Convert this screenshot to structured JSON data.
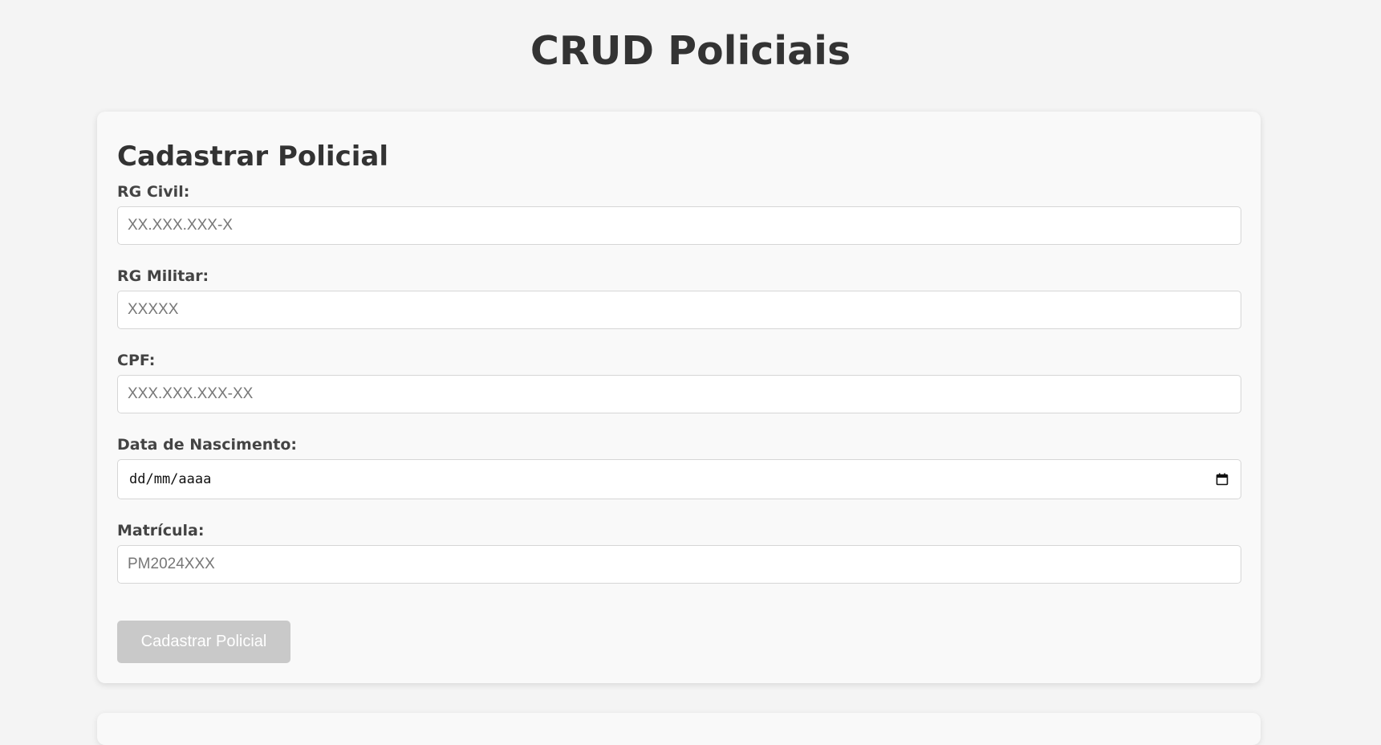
{
  "page": {
    "title": "CRUD Policiais"
  },
  "form": {
    "title": "Cadastrar Policial",
    "fields": {
      "rg_civil": {
        "label": "RG Civil:",
        "placeholder": "XX.XXX.XXX-X",
        "value": ""
      },
      "rg_militar": {
        "label": "RG Militar:",
        "placeholder": "XXXXX",
        "value": ""
      },
      "cpf": {
        "label": "CPF:",
        "placeholder": "XXX.XXX.XXX-XX",
        "value": ""
      },
      "data_nascimento": {
        "label": "Data de Nascimento:",
        "display": "dd/mm/aaaa",
        "icon": "calendar-icon"
      },
      "matricula": {
        "label": "Matrícula:",
        "placeholder": "PM2024XXX",
        "value": ""
      }
    },
    "submit_label": "Cadastrar Policial"
  },
  "colors": {
    "background": "#f4f4f4",
    "card": "#f9f9f9",
    "button_disabled": "#c9c9c9",
    "text": "#333333"
  }
}
